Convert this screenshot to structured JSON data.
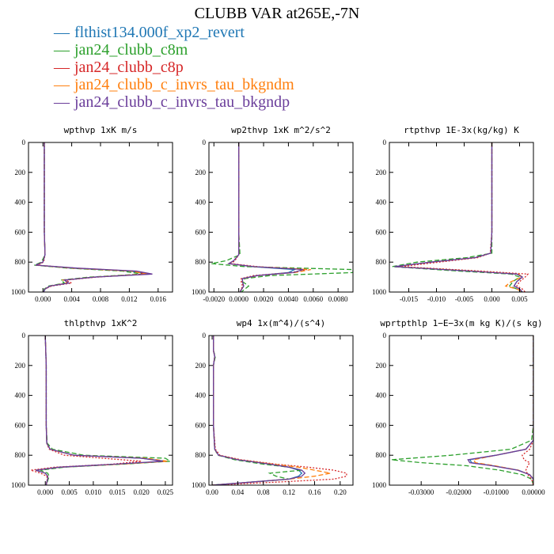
{
  "title": "CLUBB VAR at265E,-7N",
  "legend": [
    {
      "label": "flthist134.000f_xp2_revert",
      "color": "#1f77b4",
      "dash": "solid"
    },
    {
      "label": "jan24_clubb_c8m",
      "color": "#2ca02c",
      "dash": "dashed"
    },
    {
      "label": "jan24_clubb_c8p",
      "color": "#d62728",
      "dash": "dotted"
    },
    {
      "label": "jan24_clubb_c_invrs_tau_bkgndm",
      "color": "#ff7f0e",
      "dash": "dashed"
    },
    {
      "label": "jan24_clubb_c_invrs_tau_bkgndp",
      "color": "#6a3d9a",
      "dash": "solid"
    }
  ],
  "chart_data": [
    {
      "type": "line",
      "title": "wpthvp  1xK m/s",
      "xlim": [
        -0.002,
        0.018
      ],
      "ylim": [
        1000,
        0
      ],
      "xticks": [
        0.0,
        0.004,
        0.008,
        0.012,
        0.016
      ],
      "xtick_labels": [
        "0.000",
        "0.004",
        "0.008",
        "0.012",
        "0.016"
      ],
      "yticks": [
        0,
        200,
        400,
        600,
        800,
        1000
      ],
      "ytick_labels": [
        "0",
        "200",
        "400",
        "600",
        "800",
        "1000"
      ],
      "y": [
        0,
        200,
        400,
        600,
        750,
        800,
        820,
        840,
        860,
        880,
        900,
        920,
        940,
        960,
        980,
        1000
      ],
      "series": [
        {
          "name": "flthist134.000f_xp2_revert",
          "values": [
            0.0002,
            0.0002,
            0.0002,
            0.0002,
            0.0003,
            0.0,
            -0.001,
            0.004,
            0.012,
            0.0148,
            0.007,
            0.003,
            0.0035,
            0.001,
            0.0003,
            0.0001
          ]
        },
        {
          "name": "jan24_clubb_c8m",
          "values": [
            0.0002,
            0.0002,
            0.0002,
            0.0002,
            0.0003,
            -0.0002,
            -0.0012,
            0.0035,
            0.011,
            0.0138,
            0.0065,
            0.0025,
            0.003,
            0.0008,
            0.0002,
            0.0001
          ]
        },
        {
          "name": "jan24_clubb_c8p",
          "values": [
            0.0002,
            0.0002,
            0.0002,
            0.0002,
            0.0003,
            0.0001,
            -0.0008,
            0.0045,
            0.0125,
            0.0142,
            0.0075,
            0.0032,
            0.004,
            0.0012,
            0.0003,
            0.0001
          ]
        },
        {
          "name": "jan24_clubb_c_invrs_tau_bkgndm",
          "values": [
            0.0002,
            0.0002,
            0.0002,
            0.0002,
            0.0003,
            0.0,
            -0.001,
            0.0042,
            0.0122,
            0.0145,
            0.0072,
            0.0028,
            0.0034,
            0.001,
            0.0003,
            0.0001
          ]
        },
        {
          "name": "jan24_clubb_c_invrs_tau_bkgndp",
          "values": [
            0.0002,
            0.0002,
            0.0002,
            0.0002,
            0.0003,
            0.0,
            -0.001,
            0.0048,
            0.013,
            0.0152,
            0.0072,
            0.003,
            0.0036,
            0.001,
            0.0003,
            0.0001
          ]
        }
      ]
    },
    {
      "type": "line",
      "title": "wp2thvp  1xK m^2/s^2",
      "xlim": [
        -0.0024,
        0.0092
      ],
      "ylim": [
        1000,
        0
      ],
      "xticks": [
        -0.002,
        0.0,
        0.002,
        0.004,
        0.006,
        0.008
      ],
      "xtick_labels": [
        "-0.0020",
        "0.0000",
        "0.0020",
        "0.0040",
        "0.0060",
        "0.0080"
      ],
      "yticks": [
        0,
        200,
        400,
        600,
        800,
        1000
      ],
      "ytick_labels": [
        "0",
        "200",
        "400",
        "600",
        "800",
        "1000"
      ],
      "y": [
        0,
        200,
        400,
        600,
        750,
        790,
        810,
        830,
        850,
        870,
        890,
        910,
        930,
        960,
        1000
      ],
      "series": [
        {
          "name": "flthist134.000f_xp2_revert",
          "values": [
            0.0,
            0.0,
            0.0,
            0.0,
            0.0,
            -0.0004,
            -0.0008,
            0.001,
            0.0045,
            0.004,
            0.0015,
            0.0003,
            0.0003,
            0.0004,
            0.0001
          ]
        },
        {
          "name": "jan24_clubb_c8m",
          "values": [
            0.0,
            0.0,
            0.0,
            0.0,
            0.0001,
            -0.001,
            -0.0022,
            0.0005,
            0.0092,
            0.0092,
            0.0025,
            0.0005,
            0.0003,
            0.0008,
            0.0002
          ]
        },
        {
          "name": "jan24_clubb_c8p",
          "values": [
            0.0,
            0.0,
            0.0,
            0.0,
            0.0,
            -0.0003,
            -0.0006,
            0.0015,
            0.0055,
            0.0042,
            0.0012,
            0.0002,
            0.0002,
            0.0003,
            0.0001
          ]
        },
        {
          "name": "jan24_clubb_c_invrs_tau_bkgndm",
          "values": [
            0.0,
            0.0,
            0.0,
            0.0,
            0.0,
            -0.0004,
            -0.0008,
            0.0012,
            0.0058,
            0.0045,
            0.0016,
            0.0003,
            0.0003,
            0.0004,
            0.0001
          ]
        },
        {
          "name": "jan24_clubb_c_invrs_tau_bkgndp",
          "values": [
            0.0,
            0.0,
            0.0,
            0.0,
            0.0,
            -0.0004,
            -0.0008,
            0.0012,
            0.0052,
            0.0044,
            0.0015,
            0.0003,
            0.0003,
            0.0004,
            0.0001
          ]
        }
      ]
    },
    {
      "type": "line",
      "title": "rtpthvp  1E-3x(kg/kg) K",
      "xlim": [
        -0.0185,
        0.0075
      ],
      "ylim": [
        1000,
        0
      ],
      "xticks": [
        -0.015,
        -0.01,
        -0.005,
        0.0,
        0.005
      ],
      "xtick_labels": [
        "-0.015",
        "-0.010",
        "-0.005",
        "0.000",
        "0.005"
      ],
      "yticks": [
        0,
        200,
        400,
        600,
        800,
        1000
      ],
      "ytick_labels": [
        "0",
        "200",
        "400",
        "600",
        "800",
        "1000"
      ],
      "y": [
        0,
        200,
        400,
        600,
        740,
        770,
        800,
        830,
        860,
        880,
        900,
        930,
        960,
        980,
        1000
      ],
      "series": [
        {
          "name": "flthist134.000f_xp2_revert",
          "values": [
            0.0,
            0.0,
            0.0,
            0.0,
            -0.0002,
            -0.003,
            -0.011,
            -0.0175,
            -0.004,
            0.0045,
            0.0055,
            0.0045,
            0.004,
            0.005,
            0.0055
          ]
        },
        {
          "name": "jan24_clubb_c8m",
          "values": [
            0.0,
            0.0,
            0.0,
            0.0,
            0.0,
            -0.0045,
            -0.0135,
            -0.018,
            -0.006,
            0.0035,
            0.005,
            0.0038,
            0.0032,
            0.0045,
            0.0055
          ]
        },
        {
          "name": "jan24_clubb_c8p",
          "values": [
            0.0,
            0.0,
            0.0,
            0.0,
            -0.0003,
            -0.0025,
            -0.0095,
            -0.0165,
            -0.002,
            0.0065,
            0.006,
            0.005,
            0.0045,
            0.0055,
            0.006
          ]
        },
        {
          "name": "jan24_clubb_c_invrs_tau_bkgndm",
          "values": [
            0.0,
            0.0,
            0.0,
            0.0,
            -0.0002,
            -0.003,
            -0.011,
            -0.0172,
            -0.0035,
            0.0048,
            0.0055,
            0.0035,
            0.0025,
            0.0045,
            0.0055
          ]
        },
        {
          "name": "jan24_clubb_c_invrs_tau_bkgndp",
          "values": [
            0.0,
            0.0,
            0.0,
            0.0,
            -0.0002,
            -0.003,
            -0.011,
            -0.0176,
            -0.004,
            0.0045,
            0.0055,
            0.0045,
            0.004,
            0.005,
            0.0055
          ]
        }
      ]
    },
    {
      "type": "line",
      "title": "thlpthvp  1xK^2",
      "xlim": [
        -0.0035,
        0.0265
      ],
      "ylim": [
        1000,
        0
      ],
      "xticks": [
        0.0,
        0.005,
        0.01,
        0.015,
        0.02,
        0.025
      ],
      "xtick_labels": [
        "0.000",
        "0.005",
        "0.010",
        "0.015",
        "0.020",
        "0.025"
      ],
      "yticks": [
        0,
        200,
        400,
        600,
        800,
        1000
      ],
      "ytick_labels": [
        "0",
        "200",
        "400",
        "600",
        "800",
        "1000"
      ],
      "y": [
        0,
        200,
        400,
        600,
        720,
        760,
        800,
        820,
        840,
        860,
        880,
        900,
        920,
        940,
        960,
        980,
        1000
      ],
      "series": [
        {
          "name": "flthist134.000f_xp2_revert",
          "values": [
            0.0,
            0.0002,
            0.0002,
            0.0002,
            0.0003,
            0.001,
            0.006,
            0.02,
            0.025,
            0.015,
            0.003,
            -0.002,
            0.0,
            0.0005,
            0.0005,
            0.0003,
            0.0002
          ]
        },
        {
          "name": "jan24_clubb_c8m",
          "values": [
            0.0,
            0.0002,
            0.0002,
            0.0002,
            0.0004,
            0.0015,
            0.008,
            0.025,
            0.026,
            0.016,
            0.004,
            -0.001,
            0.0005,
            0.0008,
            0.0006,
            0.0004,
            0.0002
          ]
        },
        {
          "name": "jan24_clubb_c8p",
          "values": [
            0.0,
            0.0002,
            0.0002,
            0.0002,
            0.0003,
            0.0008,
            0.004,
            0.012,
            0.02,
            0.014,
            0.002,
            -0.003,
            -0.001,
            0.0003,
            0.0004,
            0.0003,
            0.0002
          ]
        },
        {
          "name": "jan24_clubb_c_invrs_tau_bkgndm",
          "values": [
            0.0,
            0.0002,
            0.0002,
            0.0002,
            0.0003,
            0.001,
            0.006,
            0.021,
            0.0255,
            0.0155,
            0.003,
            -0.002,
            0.0,
            0.0005,
            0.0005,
            0.0003,
            0.0002
          ]
        },
        {
          "name": "jan24_clubb_c_invrs_tau_bkgndp",
          "values": [
            0.0,
            0.0002,
            0.0002,
            0.0002,
            0.0003,
            0.001,
            0.006,
            0.02,
            0.0245,
            0.0145,
            0.003,
            -0.002,
            0.0,
            0.0005,
            0.0005,
            0.0003,
            0.0002
          ]
        }
      ]
    },
    {
      "type": "line",
      "title": "wp4  1x(m^4)/(s^4)",
      "xlim": [
        -0.005,
        0.22
      ],
      "ylim": [
        1000,
        0
      ],
      "xticks": [
        0.0,
        0.04,
        0.08,
        0.12,
        0.16,
        0.2
      ],
      "xtick_labels": [
        "0.00",
        "0.04",
        "0.08",
        "0.12",
        "0.16",
        "0.20"
      ],
      "yticks": [
        0,
        200,
        400,
        600,
        800,
        1000
      ],
      "ytick_labels": [
        "0",
        "200",
        "400",
        "600",
        "800",
        "1000"
      ],
      "y": [
        0,
        100,
        140,
        200,
        400,
        600,
        760,
        800,
        830,
        860,
        880,
        900,
        920,
        940,
        960,
        980,
        1000
      ],
      "series": [
        {
          "name": "flthist134.000f_xp2_revert",
          "values": [
            0.002,
            0.002,
            0.004,
            0.002,
            0.002,
            0.002,
            0.004,
            0.01,
            0.04,
            0.09,
            0.12,
            0.135,
            0.14,
            0.135,
            0.12,
            0.06,
            0.0
          ]
        },
        {
          "name": "jan24_clubb_c8m",
          "values": [
            0.002,
            0.002,
            0.005,
            0.002,
            0.002,
            0.002,
            0.004,
            0.009,
            0.035,
            0.08,
            0.12,
            0.14,
            0.09,
            0.1,
            0.12,
            0.06,
            0.0
          ]
        },
        {
          "name": "jan24_clubb_c8p",
          "values": [
            0.002,
            0.002,
            0.004,
            0.002,
            0.002,
            0.002,
            0.005,
            0.012,
            0.045,
            0.1,
            0.15,
            0.19,
            0.21,
            0.21,
            0.19,
            0.1,
            0.0
          ]
        },
        {
          "name": "jan24_clubb_c_invrs_tau_bkgndm",
          "values": [
            0.002,
            0.002,
            0.004,
            0.002,
            0.002,
            0.002,
            0.004,
            0.01,
            0.042,
            0.095,
            0.135,
            0.16,
            0.185,
            0.16,
            0.12,
            0.06,
            0.0
          ]
        },
        {
          "name": "jan24_clubb_c_invrs_tau_bkgndp",
          "values": [
            0.002,
            0.002,
            0.004,
            0.002,
            0.002,
            0.002,
            0.004,
            0.01,
            0.04,
            0.09,
            0.12,
            0.14,
            0.145,
            0.14,
            0.12,
            0.06,
            0.0
          ]
        }
      ]
    },
    {
      "type": "line",
      "title": "wprtpthlp  1−E−3x(m kg K)/(s kg)",
      "xlim": [
        -0.0385,
        0.0
      ],
      "ylim": [
        1000,
        0
      ],
      "xticks": [
        -0.03,
        -0.02,
        -0.01,
        0.0
      ],
      "xtick_labels": [
        "-0.03000",
        "-0.02000",
        "-0.01000",
        "0.00000"
      ],
      "yticks": [
        0,
        200,
        400,
        600,
        800,
        1000
      ],
      "ytick_labels": [
        "0",
        "200",
        "400",
        "600",
        "800",
        "1000"
      ],
      "y": [
        0,
        200,
        400,
        600,
        700,
        760,
        800,
        830,
        850,
        870,
        900,
        930,
        960,
        1000
      ],
      "series": [
        {
          "name": "flthist134.000f_xp2_revert",
          "values": [
            0.0,
            0.0,
            0.0,
            0.0,
            0.0,
            -0.002,
            -0.01,
            -0.017,
            -0.0165,
            -0.011,
            -0.004,
            -0.001,
            0.0,
            0.0
          ]
        },
        {
          "name": "jan24_clubb_c8m",
          "values": [
            0.0,
            0.0,
            0.0,
            0.0,
            -0.0005,
            -0.006,
            -0.022,
            -0.038,
            -0.03,
            -0.018,
            -0.009,
            -0.003,
            -0.0005,
            0.0
          ]
        },
        {
          "name": "jan24_clubb_c8p",
          "values": [
            0.0,
            0.0,
            0.0,
            0.0,
            0.0,
            -0.001,
            -0.003,
            -0.0025,
            -0.001,
            -0.0015,
            -0.002,
            -0.0015,
            -0.0005,
            0.0
          ]
        },
        {
          "name": "jan24_clubb_c_invrs_tau_bkgndm",
          "values": [
            0.0,
            0.0,
            0.0,
            0.0,
            0.0,
            -0.002,
            -0.01,
            -0.016,
            -0.0155,
            -0.0105,
            -0.004,
            -0.001,
            0.0,
            0.0
          ]
        },
        {
          "name": "jan24_clubb_c_invrs_tau_bkgndp",
          "values": [
            0.0,
            0.0,
            0.0,
            0.0,
            0.0,
            -0.002,
            -0.01,
            -0.0175,
            -0.017,
            -0.0112,
            -0.0042,
            -0.001,
            0.0,
            0.0
          ]
        }
      ]
    }
  ]
}
